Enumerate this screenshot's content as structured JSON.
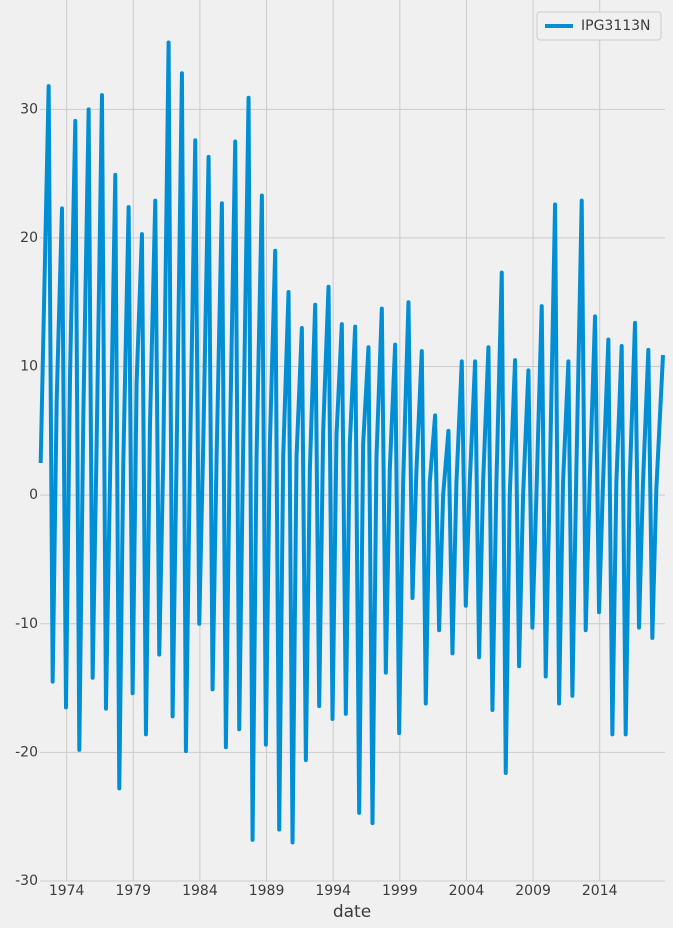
{
  "chart_data": {
    "type": "line",
    "xlabel": "date",
    "grid": true,
    "legend": "upper right",
    "xlim": [
      1972.0,
      2018.9
    ],
    "ylim": [
      -30,
      38.5
    ],
    "xticks": [
      1974,
      1979,
      1984,
      1989,
      1994,
      1999,
      2004,
      2009,
      2014
    ],
    "yticks": [
      -30,
      -20,
      -10,
      0,
      10,
      20,
      30
    ],
    "x": [
      1972.05,
      1972.65,
      1972.95,
      1973.25,
      1973.65,
      1973.95,
      1974.25,
      1974.65,
      1974.95,
      1975.25,
      1975.65,
      1975.95,
      1976.25,
      1976.65,
      1976.95,
      1977.25,
      1977.65,
      1977.95,
      1978.25,
      1978.65,
      1978.95,
      1979.25,
      1979.65,
      1979.95,
      1980.25,
      1980.65,
      1980.95,
      1981.25,
      1981.65,
      1981.95,
      1982.25,
      1982.65,
      1982.95,
      1983.25,
      1983.65,
      1983.95,
      1984.25,
      1984.65,
      1984.95,
      1985.25,
      1985.65,
      1985.95,
      1986.25,
      1986.65,
      1986.95,
      1987.25,
      1987.65,
      1987.95,
      1988.25,
      1988.65,
      1988.95,
      1989.25,
      1989.65,
      1989.95,
      1990.25,
      1990.65,
      1990.95,
      1991.25,
      1991.65,
      1991.95,
      1992.25,
      1992.65,
      1992.95,
      1993.25,
      1993.65,
      1993.95,
      1994.25,
      1994.65,
      1994.95,
      1995.25,
      1995.65,
      1995.95,
      1996.25,
      1996.65,
      1996.95,
      1997.25,
      1997.65,
      1997.95,
      1998.25,
      1998.65,
      1998.95,
      1999.25,
      1999.65,
      1999.95,
      2000.25,
      2000.65,
      2000.95,
      2001.25,
      2001.65,
      2001.95,
      2002.25,
      2002.65,
      2002.95,
      2003.25,
      2003.65,
      2003.95,
      2004.25,
      2004.65,
      2004.95,
      2005.25,
      2005.65,
      2005.95,
      2006.25,
      2006.65,
      2006.95,
      2007.25,
      2007.65,
      2007.95,
      2008.25,
      2008.65,
      2008.95,
      2009.25,
      2009.65,
      2009.95,
      2010.25,
      2010.65,
      2010.95,
      2011.25,
      2011.65,
      2011.95,
      2012.25,
      2012.65,
      2012.95,
      2013.25,
      2013.65,
      2013.95,
      2014.25,
      2014.65,
      2014.95,
      2015.25,
      2015.65,
      2015.95,
      2016.25,
      2016.65,
      2016.95,
      2017.25,
      2017.65,
      2017.95,
      2018.25,
      2018.75
    ],
    "series": [
      {
        "name": "IPG3113N",
        "color": "#008fd5",
        "values": [
          2.5,
          31.8,
          -14.5,
          7.3,
          22.3,
          -16.5,
          9.1,
          29.1,
          -19.8,
          6.1,
          30.0,
          -14.2,
          4.0,
          31.1,
          -16.6,
          1.0,
          24.9,
          -22.8,
          2.5,
          22.4,
          -15.4,
          8.8,
          20.3,
          -18.6,
          5.3,
          22.9,
          -12.4,
          2.9,
          35.2,
          -17.2,
          3.0,
          32.8,
          -19.9,
          2.5,
          27.6,
          -10.0,
          4.0,
          26.3,
          -15.1,
          2.9,
          22.7,
          -19.6,
          4.0,
          27.5,
          -18.2,
          4.0,
          30.9,
          -26.8,
          3.0,
          23.3,
          -19.4,
          4.0,
          19.0,
          -26.0,
          3.0,
          15.8,
          -27.0,
          3.0,
          13.0,
          -20.6,
          2.0,
          14.8,
          -16.4,
          5.0,
          16.2,
          -17.4,
          4.7,
          13.3,
          -17.0,
          4.0,
          13.1,
          -24.7,
          4.0,
          11.5,
          -25.5,
          3.0,
          14.5,
          -13.8,
          2.0,
          11.7,
          -18.5,
          1.0,
          15.0,
          -8.0,
          2.0,
          11.2,
          -16.2,
          1.0,
          6.2,
          -10.5,
          0.0,
          5.0,
          -12.3,
          1.0,
          10.4,
          -8.6,
          1.0,
          10.4,
          -12.6,
          1.0,
          11.5,
          -16.7,
          1.0,
          17.3,
          -21.6,
          0.0,
          10.5,
          -13.3,
          0.0,
          9.7,
          -10.3,
          0.0,
          14.7,
          -14.1,
          1.0,
          22.6,
          -16.2,
          1.0,
          10.4,
          -15.6,
          2.0,
          22.9,
          -10.5,
          1.0,
          13.9,
          -9.1,
          1.0,
          12.1,
          -18.6,
          1.0,
          11.6,
          -18.6,
          1.0,
          13.4,
          -10.3,
          1.0,
          11.3,
          -11.1,
          0.5,
          10.9
        ]
      }
    ]
  }
}
